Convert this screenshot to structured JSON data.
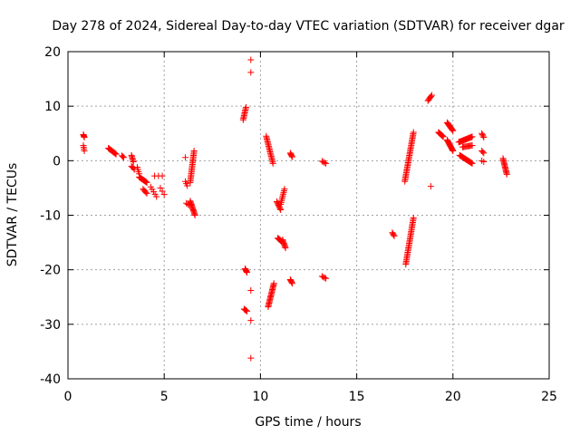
{
  "chart_data": {
    "type": "scatter",
    "title": "Day 278 of 2024, Sidereal Day-to-day VTEC variation (SDTVAR) for receiver dgar",
    "xlabel": "GPS time / hours",
    "ylabel": "SDTVAR / TECUs",
    "xlim": [
      0,
      25
    ],
    "ylim": [
      -40,
      20
    ],
    "xticks": [
      0,
      5,
      10,
      15,
      20,
      25
    ],
    "yticks": [
      -40,
      -30,
      -20,
      -10,
      0,
      10,
      20
    ],
    "xtick_labels": [
      "0",
      "5",
      "10",
      "15",
      "20",
      "25"
    ],
    "ytick_labels": [
      "-40",
      "-30",
      "-20",
      "-10",
      "0",
      "10",
      "20"
    ],
    "grid": true,
    "marker": "+",
    "color": "#ff0000",
    "segments": [
      {
        "x0": 0.8,
        "y0": 4.8,
        "x1": 0.85,
        "y1": 4.3,
        "n": 4
      },
      {
        "x0": 0.8,
        "y0": 2.8,
        "x1": 0.85,
        "y1": 1.8,
        "n": 4
      },
      {
        "x0": 2.1,
        "y0": 2.3,
        "x1": 2.5,
        "y1": 1.2,
        "n": 12
      },
      {
        "x0": 2.8,
        "y0": 0.9,
        "x1": 2.9,
        "y1": 0.6,
        "n": 3
      },
      {
        "x0": 3.3,
        "y0": 1.0,
        "x1": 3.4,
        "y1": -0.2,
        "n": 6
      },
      {
        "x0": 3.3,
        "y0": -1.0,
        "x1": 3.45,
        "y1": -1.6,
        "n": 4
      },
      {
        "x0": 3.6,
        "y0": -1.2,
        "x1": 3.7,
        "y1": -2.4,
        "n": 4
      },
      {
        "x0": 3.7,
        "y0": -3.0,
        "x1": 4.1,
        "y1": -4.0,
        "n": 12
      },
      {
        "x0": 3.9,
        "y0": -5.2,
        "x1": 4.1,
        "y1": -6.0,
        "n": 5
      },
      {
        "x0": 4.3,
        "y0": -4.8,
        "x1": 4.6,
        "y1": -6.6,
        "n": 5
      },
      {
        "x0": 4.5,
        "y0": -2.8,
        "x1": 4.9,
        "y1": -2.8,
        "n": 3
      },
      {
        "x0": 4.8,
        "y0": -5.0,
        "x1": 5.0,
        "y1": -6.2,
        "n": 3
      },
      {
        "x0": 6.1,
        "y0": 0.6,
        "x1": 6.1,
        "y1": 0.6,
        "n": 1
      },
      {
        "x0": 6.1,
        "y0": -3.8,
        "x1": 6.2,
        "y1": -4.6,
        "n": 3
      },
      {
        "x0": 6.35,
        "y0": -4.0,
        "x1": 6.55,
        "y1": 1.8,
        "n": 22
      },
      {
        "x0": 6.15,
        "y0": -7.8,
        "x1": 6.3,
        "y1": -8.2,
        "n": 3
      },
      {
        "x0": 6.35,
        "y0": -7.4,
        "x1": 6.6,
        "y1": -10.0,
        "n": 14
      },
      {
        "x0": 9.1,
        "y0": 7.5,
        "x1": 9.25,
        "y1": 9.8,
        "n": 10
      },
      {
        "x0": 9.2,
        "y0": -19.8,
        "x1": 9.3,
        "y1": -20.5,
        "n": 6
      },
      {
        "x0": 9.15,
        "y0": -27.2,
        "x1": 9.3,
        "y1": -27.6,
        "n": 5
      },
      {
        "x0": 9.5,
        "y0": 18.5,
        "x1": 9.5,
        "y1": 18.5,
        "n": 1
      },
      {
        "x0": 9.5,
        "y0": 16.2,
        "x1": 9.5,
        "y1": 16.2,
        "n": 1
      },
      {
        "x0": 9.5,
        "y0": -23.8,
        "x1": 9.5,
        "y1": -23.8,
        "n": 1
      },
      {
        "x0": 9.5,
        "y0": -29.3,
        "x1": 9.5,
        "y1": -29.3,
        "n": 1
      },
      {
        "x0": 9.5,
        "y0": -36.2,
        "x1": 9.5,
        "y1": -36.2,
        "n": 1
      },
      {
        "x0": 10.3,
        "y0": 4.5,
        "x1": 10.65,
        "y1": -0.5,
        "n": 20
      },
      {
        "x0": 10.4,
        "y0": -26.8,
        "x1": 10.7,
        "y1": -22.5,
        "n": 20
      },
      {
        "x0": 10.85,
        "y0": -7.5,
        "x1": 11.05,
        "y1": -9.0,
        "n": 8
      },
      {
        "x0": 10.9,
        "y0": -14.2,
        "x1": 11.1,
        "y1": -14.8,
        "n": 8
      },
      {
        "x0": 11.05,
        "y0": -8.0,
        "x1": 11.25,
        "y1": -5.2,
        "n": 10
      },
      {
        "x0": 11.15,
        "y0": -14.5,
        "x1": 11.3,
        "y1": -16.0,
        "n": 8
      },
      {
        "x0": 11.55,
        "y0": 1.4,
        "x1": 11.65,
        "y1": 0.7,
        "n": 5
      },
      {
        "x0": 11.55,
        "y0": -21.8,
        "x1": 11.65,
        "y1": -22.5,
        "n": 5
      },
      {
        "x0": 13.2,
        "y0": -0.1,
        "x1": 13.4,
        "y1": -0.5,
        "n": 4
      },
      {
        "x0": 13.2,
        "y0": -21.2,
        "x1": 13.4,
        "y1": -21.6,
        "n": 4
      },
      {
        "x0": 16.85,
        "y0": -13.2,
        "x1": 16.95,
        "y1": -13.8,
        "n": 4
      },
      {
        "x0": 17.5,
        "y0": -3.8,
        "x1": 17.95,
        "y1": 5.2,
        "n": 35
      },
      {
        "x0": 17.55,
        "y0": -19.0,
        "x1": 17.95,
        "y1": -10.5,
        "n": 32
      },
      {
        "x0": 18.7,
        "y0": 11.0,
        "x1": 18.9,
        "y1": 12.0,
        "n": 6
      },
      {
        "x0": 18.85,
        "y0": -4.7,
        "x1": 18.85,
        "y1": -4.7,
        "n": 1
      },
      {
        "x0": 19.25,
        "y0": 5.2,
        "x1": 19.5,
        "y1": 4.4,
        "n": 10
      },
      {
        "x0": 19.7,
        "y0": 7.0,
        "x1": 20.0,
        "y1": 5.5,
        "n": 12
      },
      {
        "x0": 19.7,
        "y0": 3.8,
        "x1": 20.0,
        "y1": 1.8,
        "n": 14
      },
      {
        "x0": 20.3,
        "y0": 3.4,
        "x1": 21.0,
        "y1": 4.4,
        "n": 18
      },
      {
        "x0": 20.35,
        "y0": 1.0,
        "x1": 21.0,
        "y1": -0.5,
        "n": 18
      },
      {
        "x0": 20.5,
        "y0": 2.5,
        "x1": 21.0,
        "y1": 2.8,
        "n": 10
      },
      {
        "x0": 21.5,
        "y0": 5.0,
        "x1": 21.6,
        "y1": 4.3,
        "n": 4
      },
      {
        "x0": 21.5,
        "y0": 1.8,
        "x1": 21.6,
        "y1": 1.4,
        "n": 3
      },
      {
        "x0": 21.5,
        "y0": 0.0,
        "x1": 21.6,
        "y1": -0.2,
        "n": 2
      },
      {
        "x0": 22.6,
        "y0": 0.4,
        "x1": 22.8,
        "y1": -2.5,
        "n": 14
      }
    ]
  }
}
